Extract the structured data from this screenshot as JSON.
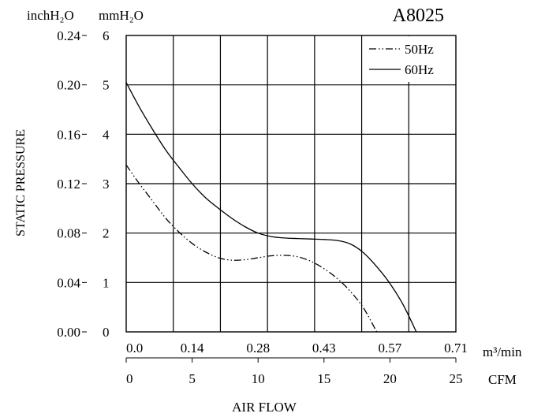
{
  "chart_data": {
    "type": "line",
    "title": "A8025",
    "left_axis_unit": "inchH₂O",
    "right_axis_unit": "mmH₂O",
    "ylabel": "STATIC PRESSURE",
    "xlabel": "AIR FLOW",
    "x_unit_top": "m³/min",
    "x_unit_bottom": "CFM",
    "x_ticks_cmm": [
      "0.0",
      "0.14",
      "0.28",
      "0.43",
      "0.57",
      "0.71"
    ],
    "x_ticks_cfm": [
      "0",
      "5",
      "10",
      "15",
      "20",
      "25"
    ],
    "y_ticks_inch": [
      "0.00",
      "0.04",
      "0.08",
      "0.12",
      "0.16",
      "0.20",
      "0.24"
    ],
    "y_ticks_mm": [
      "0",
      "1",
      "2",
      "3",
      "4",
      "5",
      "6"
    ],
    "xlim": [
      0,
      25
    ],
    "ylim": [
      0,
      6
    ],
    "x_units": "CFM",
    "y_units": "mmH2O",
    "grid": true,
    "legend_position": "top-right",
    "series": [
      {
        "name": "50Hz",
        "style": "dash-dot",
        "points": [
          [
            0,
            3.38
          ],
          [
            1,
            3.0
          ],
          [
            2,
            2.65
          ],
          [
            3,
            2.3
          ],
          [
            4,
            2.02
          ],
          [
            5,
            1.79
          ],
          [
            6,
            1.62
          ],
          [
            7,
            1.5
          ],
          [
            8,
            1.45
          ],
          [
            9,
            1.46
          ],
          [
            10,
            1.5
          ],
          [
            11,
            1.54
          ],
          [
            12,
            1.55
          ],
          [
            13,
            1.52
          ],
          [
            14,
            1.43
          ],
          [
            15,
            1.28
          ],
          [
            16,
            1.08
          ],
          [
            17,
            0.82
          ],
          [
            18,
            0.48
          ],
          [
            19,
            0.0
          ]
        ]
      },
      {
        "name": "60Hz",
        "style": "solid",
        "points": [
          [
            0,
            5.05
          ],
          [
            1,
            4.55
          ],
          [
            2,
            4.1
          ],
          [
            3,
            3.68
          ],
          [
            4,
            3.33
          ],
          [
            5,
            3.0
          ],
          [
            6,
            2.72
          ],
          [
            7,
            2.5
          ],
          [
            8,
            2.3
          ],
          [
            9,
            2.13
          ],
          [
            10,
            2.0
          ],
          [
            11,
            1.93
          ],
          [
            12,
            1.9
          ],
          [
            13,
            1.89
          ],
          [
            14,
            1.88
          ],
          [
            15,
            1.87
          ],
          [
            16,
            1.85
          ],
          [
            17,
            1.78
          ],
          [
            18,
            1.6
          ],
          [
            19,
            1.32
          ],
          [
            20,
            0.98
          ],
          [
            21,
            0.55
          ],
          [
            22,
            0.0
          ]
        ]
      }
    ]
  }
}
